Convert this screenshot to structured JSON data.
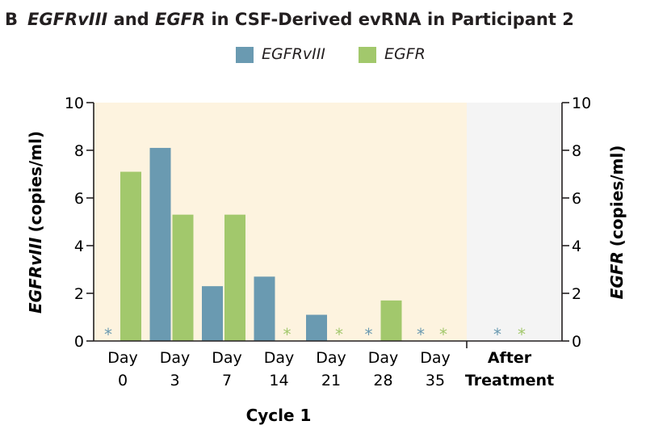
{
  "chart_data": {
    "type": "bar",
    "panel_label": "B",
    "title": {
      "gene1": "EGFRvIII",
      "and": "and",
      "gene2": "EGFR",
      "rest": "in CSF-Derived evRNA in Participant 2"
    },
    "ylabel_left": {
      "gene": "EGFRvIII",
      "unit": "(copies/ml)"
    },
    "ylabel_right": {
      "gene": "EGFR",
      "unit": "(copies/ml)"
    },
    "xlabel": "Cycle 1",
    "ylim": [
      0,
      10
    ],
    "yticks": [
      0,
      2,
      4,
      6,
      8,
      10
    ],
    "categories": [
      {
        "line1": "Day",
        "line2": "0"
      },
      {
        "line1": "Day",
        "line2": "3"
      },
      {
        "line1": "Day",
        "line2": "7"
      },
      {
        "line1": "Day",
        "line2": "14"
      },
      {
        "line1": "Day",
        "line2": "21"
      },
      {
        "line1": "Day",
        "line2": "28"
      },
      {
        "line1": "Day",
        "line2": "35"
      },
      {
        "line1": "After",
        "line2": "Treatment"
      }
    ],
    "series": [
      {
        "name": "EGFRvIII",
        "color": "#6a9ab1",
        "values": [
          null,
          8.1,
          2.3,
          2.7,
          1.1,
          null,
          null,
          null
        ]
      },
      {
        "name": "EGFR",
        "color": "#a2c86c",
        "values": [
          7.1,
          5.3,
          5.3,
          null,
          null,
          1.7,
          null,
          null
        ]
      }
    ],
    "not_detected_marker": "*",
    "shading": {
      "cycle1_color": "#fdf3df",
      "after_treatment_color": "#f4f4f4"
    },
    "legend_position": "top-center",
    "grid": false
  }
}
